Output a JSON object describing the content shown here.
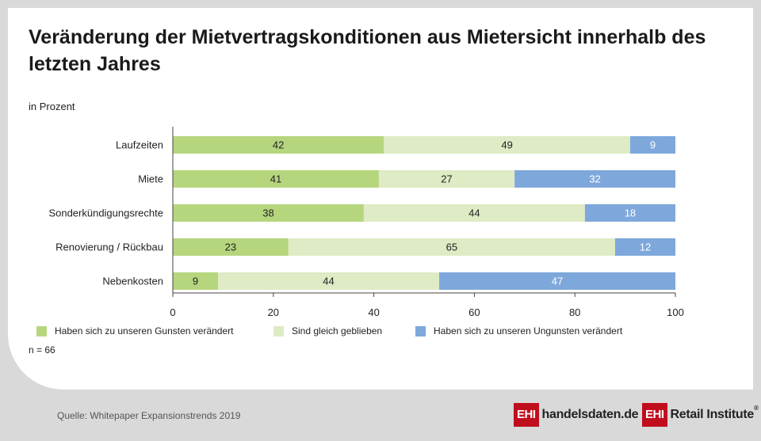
{
  "title": "Veränderung der Mietvertragskonditionen aus Mietersicht innerhalb des letzten Jahres",
  "unit_label": "in Prozent",
  "sample_note": "n = 66",
  "source": "Quelle: Whitepaper Expansionstrends 2019",
  "logos": {
    "left_box": "EHI",
    "left_text": "handelsdaten.de",
    "right_box": "EHI",
    "right_text": "Retail Institute",
    "right_reg": "®"
  },
  "colors": {
    "positive": "#b6d67e",
    "neutral": "#deebc4",
    "negative": "#7ea8dc",
    "brand": "#c00d1e"
  },
  "chart_data": {
    "type": "bar",
    "orientation": "horizontal",
    "stacked": true,
    "categories": [
      "Laufzeiten",
      "Miete",
      "Sonderkündigungsrechte",
      "Renovierung / Rückbau",
      "Nebenkosten"
    ],
    "series": [
      {
        "name": "Haben sich zu unseren Gunsten verändert",
        "values": [
          42,
          41,
          38,
          23,
          9
        ],
        "color": "#b6d67e",
        "label_color": "#222222"
      },
      {
        "name": "Sind gleich geblieben",
        "values": [
          49,
          27,
          44,
          65,
          44
        ],
        "color": "#deebc4",
        "label_color": "#222222"
      },
      {
        "name": "Haben sich zu unseren Ungunsten verändert",
        "values": [
          9,
          32,
          18,
          12,
          47
        ],
        "color": "#7ea8dc",
        "label_color": "#ffffff"
      }
    ],
    "xlim": [
      0,
      100
    ],
    "xticks": [
      0,
      20,
      40,
      60,
      80,
      100
    ],
    "grid": false,
    "legend_position": "bottom"
  }
}
